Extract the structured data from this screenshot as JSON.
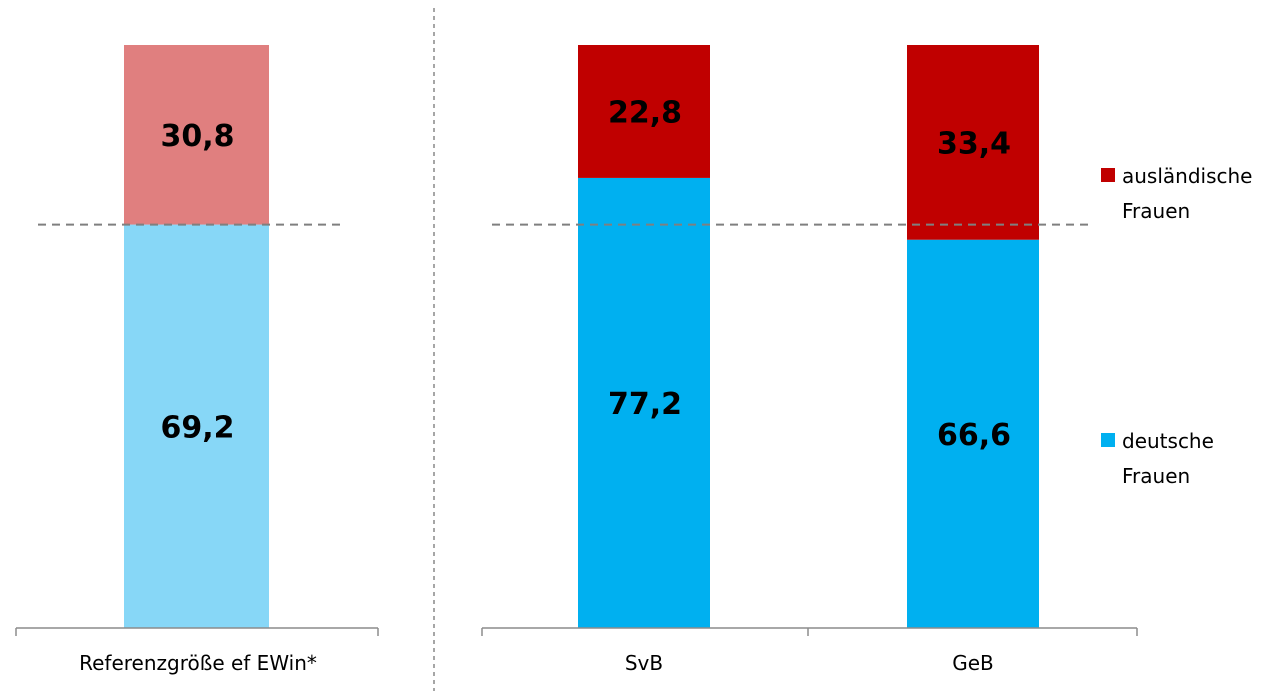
{
  "chart_data": {
    "type": "bar",
    "stacked": true,
    "percent_scale": true,
    "categories": [
      "Referenzgröße ef EWin*",
      "SvB",
      "GeB"
    ],
    "series": [
      {
        "name": "deutsche Frauen",
        "values": [
          69.2,
          77.2,
          66.6
        ],
        "labels": [
          "69,2",
          "77,2",
          "66,6"
        ],
        "colors": [
          "#87d7f7",
          "#00b0f0",
          "#00b0f0"
        ]
      },
      {
        "name": "ausländische Frauen",
        "values": [
          30.8,
          22.8,
          33.4
        ],
        "labels": [
          "30,8",
          "22,8",
          "33,4"
        ],
        "colors": [
          "#e07f7f",
          "#c00000",
          "#c00000"
        ]
      }
    ],
    "reference_line": 69.2,
    "ylim": [
      0,
      100
    ],
    "legend": {
      "position": "right",
      "items": [
        {
          "lines": [
            "ausländische",
            "Frauen"
          ],
          "color": "#c00000"
        },
        {
          "lines": [
            "deutsche",
            "Frauen"
          ],
          "color": "#00b0f0"
        }
      ]
    },
    "title": "",
    "xlabel": "",
    "ylabel": ""
  }
}
